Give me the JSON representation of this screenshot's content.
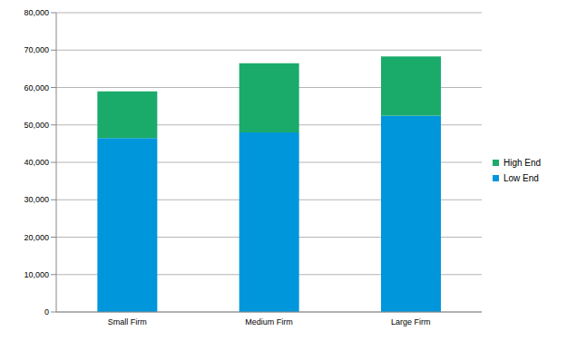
{
  "chart_data": {
    "type": "bar",
    "categories": [
      "Small Firm",
      "Medium Firm",
      "Large Firm"
    ],
    "series": [
      {
        "name": "Low End",
        "color": "#0096db",
        "values": [
          46500,
          48000,
          52500
        ]
      },
      {
        "name": "High End",
        "color": "#1aab6a",
        "values": [
          12500,
          18500,
          15800
        ]
      }
    ],
    "ylim": [
      0,
      80000
    ],
    "yticks": [
      0,
      {
        "value": 10000,
        "label": "10,000"
      },
      {
        "value": 20000,
        "label": "20,000"
      },
      {
        "value": 30000,
        "label": "30,000"
      },
      {
        "value": 40000,
        "label": "40,000"
      },
      {
        "value": 50000,
        "label": "50,000"
      },
      {
        "value": 60000,
        "label": "60,000"
      },
      {
        "value": 70000,
        "label": "70,000"
      },
      {
        "value": 80000,
        "label": "80,000"
      }
    ],
    "stacked": true,
    "grid": true,
    "legend": "right"
  }
}
